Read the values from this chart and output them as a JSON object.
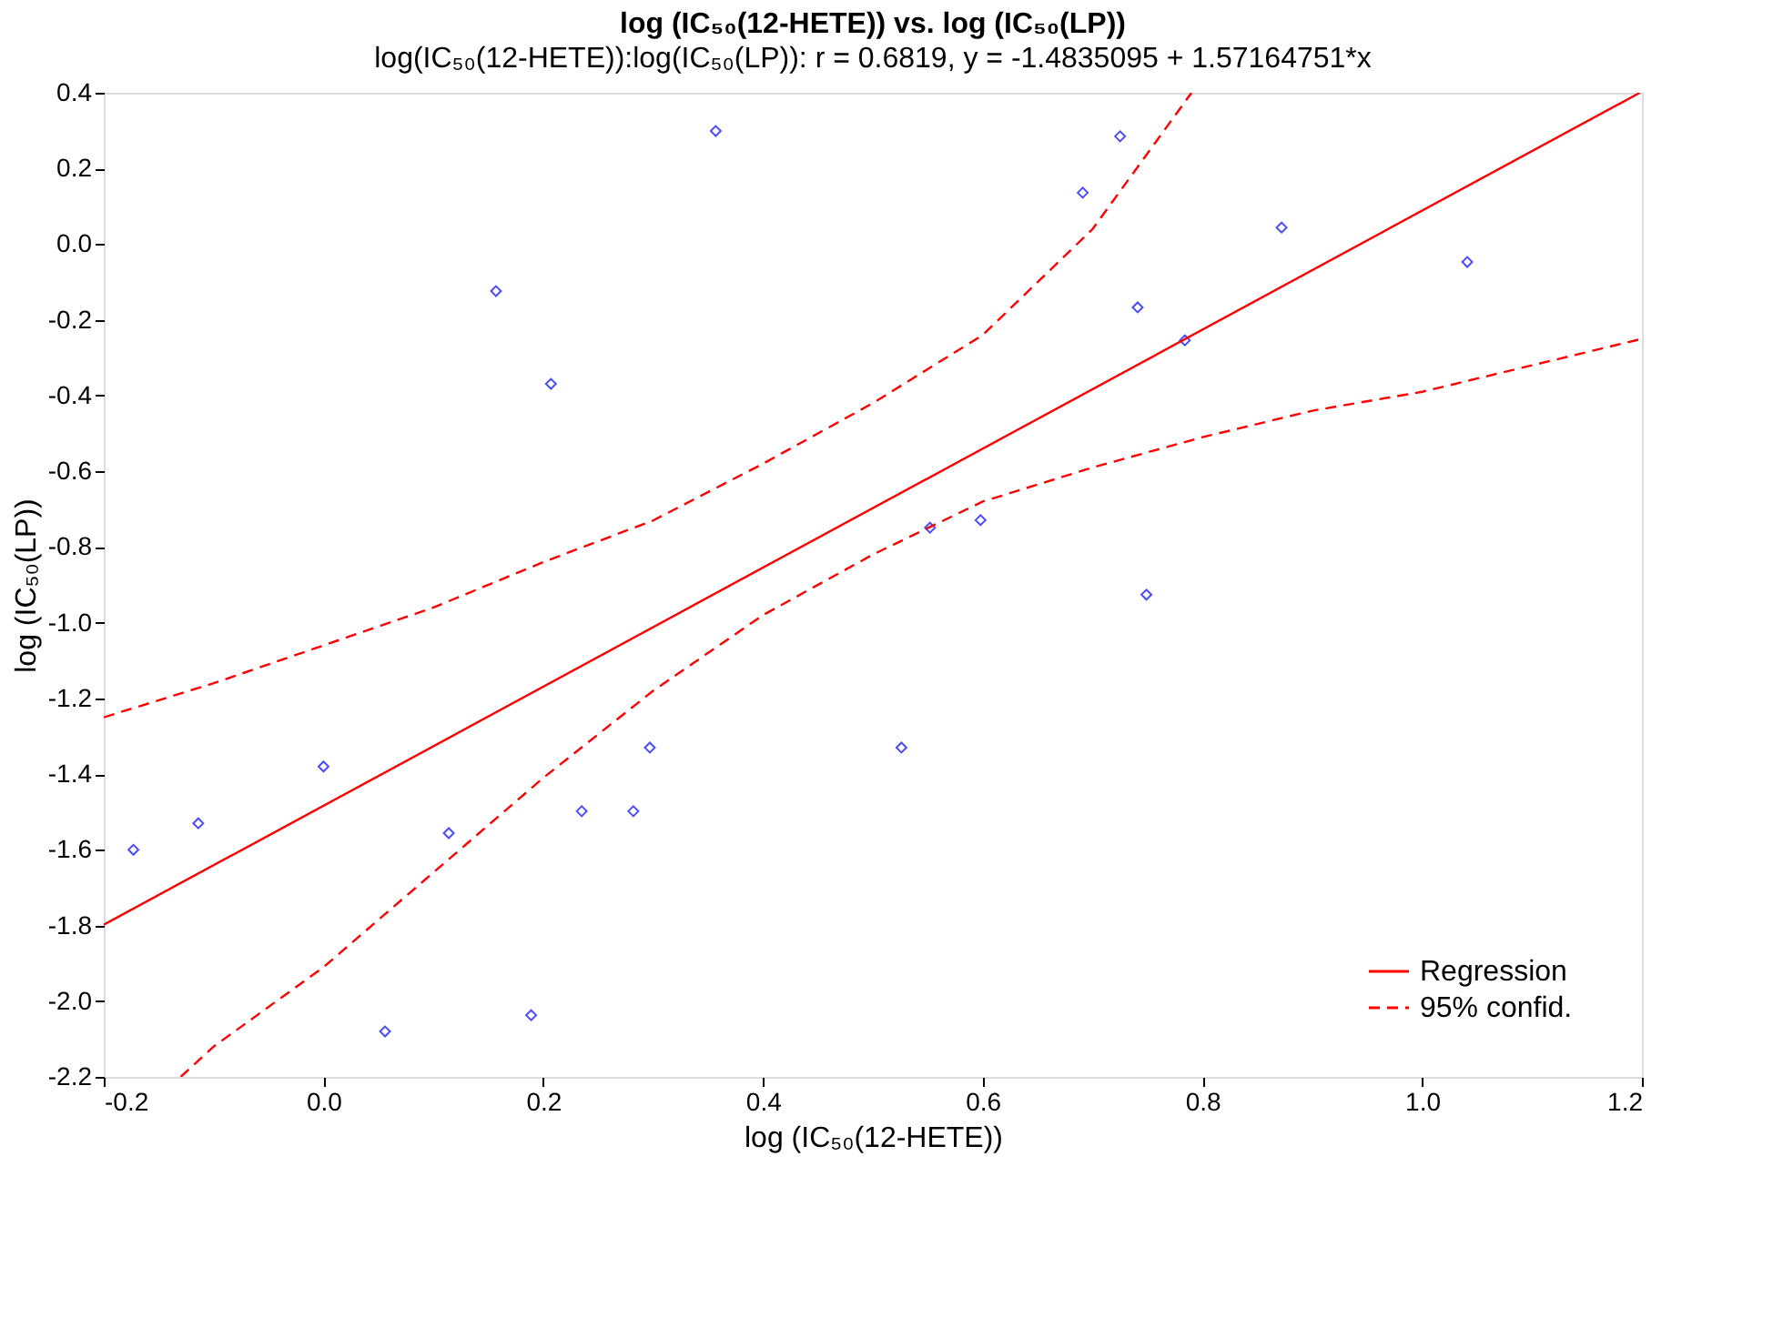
{
  "chart_data": {
    "type": "scatter",
    "title": "log (IC₅₀(12-HETE)) vs. log (IC₅₀(LP))",
    "subtitle": "log(IC₅₀(12-HETE)):log(IC₅₀(LP)): r = 0.6819, y = -1.4835095 + 1.57164751*x",
    "xlabel": "log (IC₅₀(12-HETE))",
    "ylabel": "log (IC₅₀(LP))",
    "xlim": [
      -0.2,
      1.2
    ],
    "ylim": [
      -2.2,
      0.4
    ],
    "xticks": [
      {
        "value": -0.2,
        "label": "-0.2"
      },
      {
        "value": 0,
        "label": "0.0"
      },
      {
        "value": 0.2,
        "label": "0.2"
      },
      {
        "value": 0.4,
        "label": "0.4"
      },
      {
        "value": 0.6,
        "label": "0.6"
      },
      {
        "value": 0.8,
        "label": "0.8"
      },
      {
        "value": 1,
        "label": "1.0"
      },
      {
        "value": 1.2,
        "label": "1.2"
      }
    ],
    "yticks": [
      {
        "value": -2.2,
        "label": "-2.2"
      },
      {
        "value": -2,
        "label": "-2.0"
      },
      -1.8,
      -1.6,
      -1.4,
      -1.2,
      {
        "value": -1,
        "label": "-1.0"
      },
      -0.8,
      -0.6,
      -0.4,
      -0.2,
      {
        "value": 0,
        "label": "0.0"
      },
      0.2,
      0.4
    ],
    "grid": false,
    "legend": "bottom right",
    "series": [
      {
        "marker": "diamond",
        "color": "#0000ff",
        "x": [
          -0.173,
          -0.114,
          0.0,
          0.056,
          0.114,
          0.157,
          0.189,
          0.207,
          0.235,
          0.282,
          0.297,
          0.357,
          0.526,
          0.552,
          0.598,
          0.691,
          0.725,
          0.741,
          0.749,
          0.784,
          0.872,
          1.041
        ],
        "values": [
          -1.6,
          -1.53,
          -1.38,
          -2.08,
          -1.556,
          -0.124,
          -2.037,
          -0.369,
          -1.498,
          -1.498,
          -1.33,
          0.299,
          -1.33,
          -0.749,
          -0.729,
          0.136,
          0.285,
          -0.167,
          -0.926,
          -0.254,
          0.044,
          -0.047
        ]
      },
      {
        "type": "line",
        "name": "Regression",
        "color": "#ff0000",
        "line_style": "solid",
        "x": [
          -0.2,
          1.198
        ],
        "values": [
          -1.798,
          0.4
        ]
      },
      {
        "type": "line",
        "name": "95% confid.",
        "color": "#ff0000",
        "line_style": "dashed",
        "x": [
          -0.2,
          -0.1,
          0,
          0.1,
          0.2,
          0.3,
          0.4,
          0.5,
          0.6,
          0.7,
          0.79
        ],
        "values": [
          -1.25,
          -1.16,
          -1.06,
          -0.96,
          -0.84,
          -0.73,
          -0.58,
          -0.42,
          -0.24,
          0.04,
          0.4
        ]
      },
      {
        "type": "line",
        "color": "#ff0000",
        "line_style": "dashed",
        "x": [
          -0.13,
          -0.1,
          0,
          0.1,
          0.2,
          0.3,
          0.4,
          0.5,
          0.6,
          0.7,
          0.8,
          0.9,
          1.0,
          1.1,
          1.2
        ],
        "values": [
          -2.2,
          -2.12,
          -1.91,
          -1.66,
          -1.41,
          -1.18,
          -0.98,
          -0.82,
          -0.68,
          -0.59,
          -0.51,
          -0.44,
          -0.39,
          -0.32,
          -0.25
        ]
      }
    ]
  }
}
